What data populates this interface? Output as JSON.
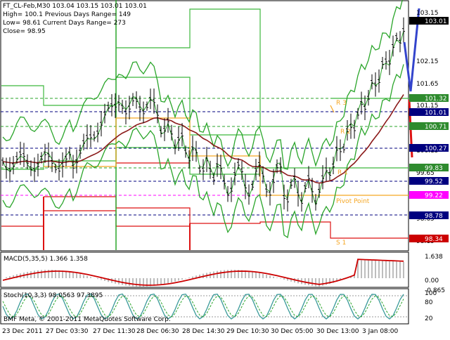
{
  "header": {
    "line1": "FT_CL-Feb,M30  103.04 103.15 103.01 103.01",
    "line2": "High= 100.1     Previous Days Range= 149",
    "line3": "Low= 98.61     Current Days Range= 273",
    "line4": "Close= 98.95"
  },
  "price_axis": {
    "ticks": [
      "103.15",
      "102.15",
      "101.65",
      "101.15",
      "100.65",
      "100.15",
      "99.65",
      "98.65",
      "98.15"
    ],
    "badges": [
      {
        "value": "103.01",
        "color": "#000000"
      },
      {
        "value": "101.32",
        "color": "#2e8b2e"
      },
      {
        "value": "101.01",
        "color": "#00007f"
      },
      {
        "value": "100.71",
        "color": "#2e8b2e"
      },
      {
        "value": "100.27",
        "color": "#00007f"
      },
      {
        "value": "99.83",
        "color": "#2e8b2e"
      },
      {
        "value": "99.52",
        "color": "#00007f"
      },
      {
        "value": "99.22",
        "color": "#ff00ff"
      },
      {
        "value": "98.78",
        "color": "#00007f"
      },
      {
        "value": "98.34",
        "color": "#cc0000"
      }
    ]
  },
  "pivot_labels": {
    "r3": "R 3",
    "r2": "R 2",
    "r1": "R 1",
    "pivot": "Pivot Point",
    "s1": "S 1"
  },
  "macd": {
    "label": "MACD(5,35,5) 1.366 1.358",
    "ticks": [
      "1.638",
      "0.00",
      "-0.865"
    ]
  },
  "stoch": {
    "label": "Stoch(10,3,3) 98.0563 97.3895",
    "ticks": [
      "100",
      "80",
      "20"
    ]
  },
  "watermark": "BMF Meta, © 2001-2011 MetaQuotes Software Corp.",
  "time_axis": [
    "23 Dec 2011",
    "27 Dec 03:30",
    "27 Dec 11:30",
    "28 Dec 06:30",
    "28 Dec 14:30",
    "29 Dec 10:30",
    "30 Dec 05:00",
    "30 Dec 13:00",
    "3 Jan 08:00"
  ],
  "colors": {
    "bands": "#2aa52a",
    "ma": "#8b1a1a",
    "resistance": "#3cb83c",
    "support": "#dd1111",
    "pivot": "#f5a623",
    "projection_blue": "#3344cc",
    "projection_red": "#dd1111",
    "macd_signal": "#cc0000",
    "macd_hist": "#bdbdbd",
    "stoch_main": "#3a9a9a",
    "stoch_signal": "#2aa52a"
  }
}
